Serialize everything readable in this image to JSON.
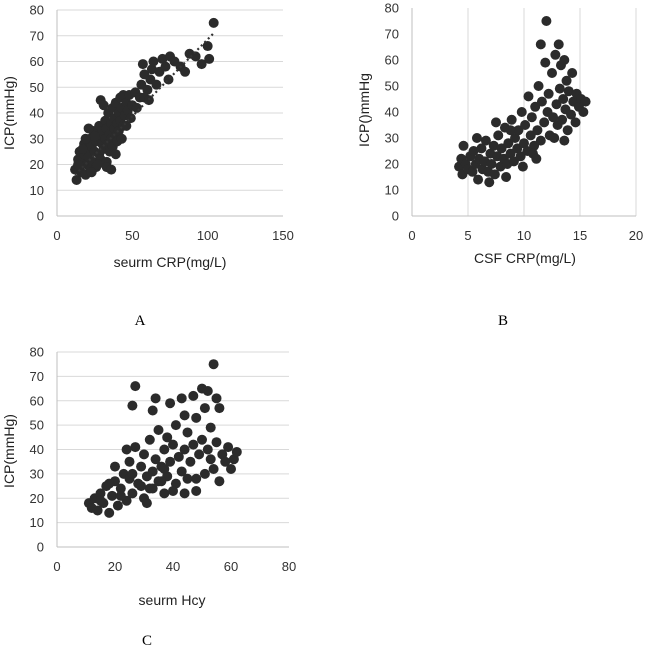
{
  "colors": {
    "points": "#2b2b2b",
    "grid": "#d9d9d9",
    "axis": "#bfbfbf",
    "text": "#333333"
  },
  "chart_data": [
    {
      "type": "scatter",
      "panel": "A",
      "xlabel": "seurm CRP(mg/L)",
      "ylabel": "ICP(mmHg)",
      "xlim": [
        0,
        150
      ],
      "ylim": [
        0,
        80
      ],
      "xticks": [
        "0",
        "50",
        "100",
        "150"
      ],
      "yticks": [
        "0",
        "10",
        "20",
        "30",
        "40",
        "50",
        "60",
        "70",
        "80"
      ],
      "grid": "horizontal",
      "trendline": {
        "style": "dotted",
        "from": [
          12,
          16
        ],
        "to": [
          104,
          71
        ]
      },
      "points": [
        [
          12,
          18
        ],
        [
          13,
          14
        ],
        [
          14,
          22
        ],
        [
          15,
          19
        ],
        [
          15,
          25
        ],
        [
          16,
          17
        ],
        [
          17,
          21
        ],
        [
          18,
          24
        ],
        [
          18,
          28
        ],
        [
          19,
          16
        ],
        [
          20,
          20
        ],
        [
          20,
          26
        ],
        [
          21,
          23
        ],
        [
          22,
          30
        ],
        [
          22,
          18
        ],
        [
          23,
          27
        ],
        [
          24,
          21
        ],
        [
          24,
          33
        ],
        [
          25,
          25
        ],
        [
          26,
          29
        ],
        [
          26,
          19
        ],
        [
          27,
          31
        ],
        [
          28,
          24
        ],
        [
          28,
          35
        ],
        [
          29,
          22
        ],
        [
          30,
          28
        ],
        [
          30,
          33
        ],
        [
          31,
          26
        ],
        [
          32,
          30
        ],
        [
          32,
          37
        ],
        [
          33,
          21
        ],
        [
          33,
          34
        ],
        [
          34,
          28
        ],
        [
          34,
          40
        ],
        [
          35,
          25
        ],
        [
          35,
          32
        ],
        [
          36,
          36
        ],
        [
          36,
          30
        ],
        [
          37,
          42
        ],
        [
          37,
          27
        ],
        [
          38,
          34
        ],
        [
          38,
          38
        ],
        [
          39,
          31
        ],
        [
          39,
          44
        ],
        [
          40,
          36
        ],
        [
          40,
          29
        ],
        [
          41,
          40
        ],
        [
          41,
          33
        ],
        [
          42,
          46
        ],
        [
          42,
          37
        ],
        [
          43,
          42
        ],
        [
          44,
          35
        ],
        [
          44,
          47
        ],
        [
          45,
          39
        ],
        [
          46,
          44
        ],
        [
          47,
          41
        ],
        [
          48,
          47
        ],
        [
          50,
          43
        ],
        [
          52,
          48
        ],
        [
          55,
          46
        ],
        [
          56,
          51
        ],
        [
          57,
          59
        ],
        [
          58,
          55
        ],
        [
          60,
          49
        ],
        [
          62,
          53
        ],
        [
          63,
          57
        ],
        [
          64,
          60
        ],
        [
          66,
          51
        ],
        [
          68,
          56
        ],
        [
          70,
          61
        ],
        [
          72,
          58
        ],
        [
          75,
          62
        ],
        [
          78,
          60
        ],
        [
          82,
          58
        ],
        [
          85,
          56
        ],
        [
          88,
          63
        ],
        [
          92,
          62
        ],
        [
          96,
          59
        ],
        [
          100,
          66
        ],
        [
          101,
          61
        ],
        [
          104,
          75
        ],
        [
          29,
          45
        ],
        [
          31,
          43
        ],
        [
          25,
          31
        ],
        [
          21,
          34
        ],
        [
          17,
          26
        ],
        [
          14,
          20
        ],
        [
          19,
          30
        ],
        [
          23,
          17
        ],
        [
          27,
          20
        ],
        [
          33,
          19
        ],
        [
          36,
          18
        ],
        [
          39,
          24
        ],
        [
          43,
          30
        ],
        [
          46,
          35
        ],
        [
          49,
          38
        ],
        [
          53,
          42
        ],
        [
          58,
          46
        ],
        [
          61,
          45
        ],
        [
          74,
          53
        ]
      ]
    },
    {
      "type": "scatter",
      "panel": "B",
      "xlabel": "CSF CRP(mg/L)",
      "ylabel": "ICP()mmHg",
      "xlim": [
        0,
        20
      ],
      "ylim": [
        0,
        80
      ],
      "xticks": [
        "0",
        "5",
        "10",
        "15",
        "20"
      ],
      "yticks": [
        "0",
        "10",
        "20",
        "30",
        "40",
        "50",
        "60",
        "70",
        "80"
      ],
      "grid": "vertical",
      "points": [
        [
          4.2,
          19
        ],
        [
          4.4,
          22
        ],
        [
          4.5,
          16
        ],
        [
          4.6,
          27
        ],
        [
          4.8,
          20
        ],
        [
          5.0,
          18
        ],
        [
          5.2,
          23
        ],
        [
          5.4,
          17
        ],
        [
          5.5,
          25
        ],
        [
          5.7,
          20
        ],
        [
          5.9,
          14
        ],
        [
          6.0,
          22
        ],
        [
          6.2,
          26
        ],
        [
          6.3,
          18
        ],
        [
          6.5,
          21
        ],
        [
          6.6,
          29
        ],
        [
          6.8,
          17
        ],
        [
          7.0,
          24
        ],
        [
          7.1,
          20
        ],
        [
          7.3,
          27
        ],
        [
          7.4,
          16
        ],
        [
          7.6,
          23
        ],
        [
          7.7,
          31
        ],
        [
          7.9,
          19
        ],
        [
          8.0,
          26
        ],
        [
          8.2,
          22
        ],
        [
          8.3,
          34
        ],
        [
          8.5,
          20
        ],
        [
          8.6,
          28
        ],
        [
          8.8,
          24
        ],
        [
          8.9,
          37
        ],
        [
          9.1,
          21
        ],
        [
          9.2,
          30
        ],
        [
          9.4,
          26
        ],
        [
          9.5,
          33
        ],
        [
          9.7,
          23
        ],
        [
          9.8,
          40
        ],
        [
          10.0,
          28
        ],
        [
          10.1,
          35
        ],
        [
          10.3,
          25
        ],
        [
          10.4,
          46
        ],
        [
          10.6,
          31
        ],
        [
          10.7,
          38
        ],
        [
          10.9,
          27
        ],
        [
          11.0,
          42
        ],
        [
          11.2,
          33
        ],
        [
          11.3,
          50
        ],
        [
          11.5,
          29
        ],
        [
          11.6,
          44
        ],
        [
          11.8,
          36
        ],
        [
          11.9,
          59
        ],
        [
          12.0,
          75
        ],
        [
          12.1,
          40
        ],
        [
          12.2,
          47
        ],
        [
          12.3,
          31
        ],
        [
          12.5,
          55
        ],
        [
          12.6,
          38
        ],
        [
          12.8,
          62
        ],
        [
          12.9,
          43
        ],
        [
          13.0,
          35
        ],
        [
          13.1,
          66
        ],
        [
          13.2,
          49
        ],
        [
          13.3,
          58
        ],
        [
          13.4,
          37
        ],
        [
          13.5,
          45
        ],
        [
          13.6,
          60
        ],
        [
          13.7,
          41
        ],
        [
          13.8,
          52
        ],
        [
          13.9,
          33
        ],
        [
          14.0,
          48
        ],
        [
          14.2,
          39
        ],
        [
          14.3,
          55
        ],
        [
          14.4,
          44
        ],
        [
          14.6,
          36
        ],
        [
          14.7,
          47
        ],
        [
          14.9,
          42
        ],
        [
          15.1,
          45
        ],
        [
          15.3,
          40
        ],
        [
          15.5,
          44
        ],
        [
          11.5,
          66
        ],
        [
          7.5,
          36
        ],
        [
          8.8,
          33
        ],
        [
          6.9,
          13
        ],
        [
          9.9,
          19
        ],
        [
          10.8,
          24
        ],
        [
          12.7,
          30
        ],
        [
          13.6,
          29
        ],
        [
          11.1,
          22
        ],
        [
          5.8,
          30
        ],
        [
          8.4,
          15
        ]
      ]
    },
    {
      "type": "scatter",
      "panel": "C",
      "xlabel": "seurm Hcy",
      "ylabel": "ICP(mmHg)",
      "xlim": [
        0,
        80
      ],
      "ylim": [
        0,
        80
      ],
      "xticks": [
        "0",
        "20",
        "40",
        "60",
        "80"
      ],
      "yticks": [
        "0",
        "10",
        "20",
        "30",
        "40",
        "50",
        "60",
        "70",
        "80"
      ],
      "grid": "horizontal",
      "points": [
        [
          11,
          18
        ],
        [
          12,
          16
        ],
        [
          13,
          20
        ],
        [
          14,
          15
        ],
        [
          15,
          22
        ],
        [
          16,
          18
        ],
        [
          17,
          25
        ],
        [
          18,
          14
        ],
        [
          19,
          21
        ],
        [
          20,
          27
        ],
        [
          21,
          17
        ],
        [
          22,
          24
        ],
        [
          23,
          30
        ],
        [
          24,
          19
        ],
        [
          25,
          28
        ],
        [
          25,
          35
        ],
        [
          26,
          22
        ],
        [
          27,
          41
        ],
        [
          27,
          66
        ],
        [
          26,
          58
        ],
        [
          28,
          26
        ],
        [
          29,
          33
        ],
        [
          30,
          20
        ],
        [
          30,
          38
        ],
        [
          31,
          29
        ],
        [
          32,
          24
        ],
        [
          32,
          44
        ],
        [
          33,
          56
        ],
        [
          33,
          31
        ],
        [
          34,
          36
        ],
        [
          34,
          61
        ],
        [
          35,
          27
        ],
        [
          35,
          48
        ],
        [
          36,
          33
        ],
        [
          37,
          40
        ],
        [
          37,
          22
        ],
        [
          38,
          45
        ],
        [
          38,
          29
        ],
        [
          39,
          59
        ],
        [
          39,
          35
        ],
        [
          40,
          42
        ],
        [
          41,
          26
        ],
        [
          41,
          50
        ],
        [
          42,
          37
        ],
        [
          43,
          61
        ],
        [
          43,
          31
        ],
        [
          44,
          54
        ],
        [
          44,
          40
        ],
        [
          45,
          28
        ],
        [
          45,
          47
        ],
        [
          46,
          35
        ],
        [
          47,
          62
        ],
        [
          47,
          42
        ],
        [
          48,
          23
        ],
        [
          48,
          53
        ],
        [
          49,
          38
        ],
        [
          50,
          65
        ],
        [
          50,
          44
        ],
        [
          51,
          30
        ],
        [
          51,
          57
        ],
        [
          52,
          40
        ],
        [
          52,
          64
        ],
        [
          53,
          36
        ],
        [
          53,
          49
        ],
        [
          54,
          75
        ],
        [
          54,
          32
        ],
        [
          55,
          61
        ],
        [
          55,
          43
        ],
        [
          56,
          57
        ],
        [
          56,
          27
        ],
        [
          57,
          38
        ],
        [
          58,
          35
        ],
        [
          59,
          41
        ],
        [
          60,
          32
        ],
        [
          61,
          36
        ],
        [
          62,
          39
        ],
        [
          20,
          33
        ],
        [
          24,
          40
        ],
        [
          29,
          25
        ],
        [
          31,
          18
        ],
        [
          36,
          27
        ],
        [
          40,
          23
        ],
        [
          44,
          22
        ],
        [
          48,
          28
        ],
        [
          15,
          19
        ],
        [
          18,
          26
        ],
        [
          22,
          21
        ],
        [
          26,
          30
        ],
        [
          33,
          24
        ],
        [
          37,
          32
        ]
      ]
    }
  ],
  "panels": [
    {
      "letter": "A"
    },
    {
      "letter": "B"
    },
    {
      "letter": "C"
    }
  ]
}
